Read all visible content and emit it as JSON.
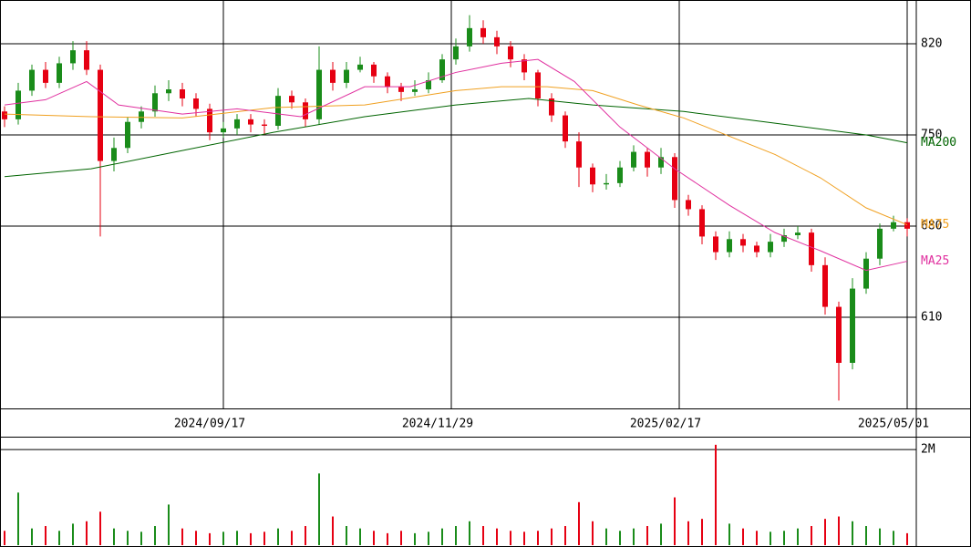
{
  "chart_data": {
    "type": "candlestick",
    "x": [
      0,
      3,
      6,
      9,
      12,
      15,
      18,
      21,
      24,
      27,
      30,
      33,
      36,
      39,
      42,
      45,
      48,
      51,
      54,
      57,
      60,
      63,
      66,
      69,
      72,
      75,
      78,
      81,
      84,
      87,
      90,
      93,
      96,
      99,
      102,
      105,
      108,
      111,
      114,
      117,
      120,
      123,
      126,
      129,
      132,
      135,
      138,
      141,
      144,
      147,
      150,
      153,
      156,
      159,
      162,
      165,
      168,
      171,
      174,
      177,
      180,
      183,
      186,
      189,
      192,
      195,
      198
    ],
    "candles": [
      [
        768,
        772,
        756,
        762
      ],
      [
        762,
        790,
        758,
        784
      ],
      [
        784,
        804,
        780,
        800
      ],
      [
        800,
        806,
        786,
        790
      ],
      [
        790,
        810,
        786,
        805
      ],
      [
        805,
        822,
        800,
        815
      ],
      [
        815,
        822,
        796,
        800
      ],
      [
        800,
        804,
        672,
        730
      ],
      [
        730,
        748,
        722,
        740
      ],
      [
        740,
        764,
        736,
        760
      ],
      [
        760,
        772,
        755,
        768
      ],
      [
        768,
        788,
        764,
        782
      ],
      [
        782,
        792,
        776,
        785
      ],
      [
        785,
        790,
        772,
        778
      ],
      [
        778,
        782,
        764,
        770
      ],
      [
        770,
        774,
        746,
        752
      ],
      [
        752,
        760,
        748,
        755
      ],
      [
        755,
        766,
        750,
        762
      ],
      [
        762,
        766,
        752,
        758
      ],
      [
        758,
        762,
        750,
        757
      ],
      [
        757,
        786,
        754,
        780
      ],
      [
        780,
        784,
        770,
        775
      ],
      [
        775,
        778,
        756,
        762
      ],
      [
        762,
        818,
        758,
        800
      ],
      [
        800,
        806,
        784,
        790
      ],
      [
        790,
        806,
        786,
        800
      ],
      [
        800,
        810,
        798,
        804
      ],
      [
        804,
        806,
        790,
        795
      ],
      [
        795,
        798,
        782,
        787
      ],
      [
        787,
        790,
        776,
        783
      ],
      [
        783,
        792,
        780,
        785
      ],
      [
        785,
        798,
        782,
        792
      ],
      [
        792,
        812,
        790,
        808
      ],
      [
        808,
        824,
        804,
        818
      ],
      [
        818,
        842,
        814,
        832
      ],
      [
        832,
        838,
        820,
        825
      ],
      [
        825,
        830,
        812,
        818
      ],
      [
        818,
        822,
        802,
        808
      ],
      [
        808,
        812,
        792,
        798
      ],
      [
        798,
        800,
        772,
        778
      ],
      [
        778,
        782,
        760,
        765
      ],
      [
        765,
        768,
        740,
        745
      ],
      [
        745,
        752,
        710,
        725
      ],
      [
        725,
        728,
        706,
        712
      ],
      [
        712,
        720,
        708,
        713
      ],
      [
        713,
        730,
        710,
        725
      ],
      [
        725,
        742,
        722,
        737
      ],
      [
        737,
        740,
        718,
        725
      ],
      [
        725,
        740,
        720,
        733
      ],
      [
        733,
        736,
        694,
        700
      ],
      [
        700,
        704,
        688,
        693
      ],
      [
        693,
        696,
        666,
        672
      ],
      [
        672,
        676,
        654,
        660
      ],
      [
        660,
        676,
        656,
        670
      ],
      [
        670,
        674,
        660,
        665
      ],
      [
        665,
        668,
        656,
        660
      ],
      [
        660,
        674,
        656,
        668
      ],
      [
        668,
        678,
        664,
        673
      ],
      [
        673,
        680,
        670,
        675
      ],
      [
        675,
        678,
        645,
        650
      ],
      [
        650,
        656,
        612,
        618
      ],
      [
        618,
        622,
        546,
        575
      ],
      [
        575,
        640,
        570,
        632
      ],
      [
        632,
        660,
        628,
        655
      ],
      [
        655,
        682,
        650,
        678
      ],
      [
        678,
        688,
        676,
        683
      ],
      [
        683,
        686,
        672,
        678
      ]
    ],
    "up_color": "#1a8c1a",
    "down_color": "#e60012",
    "xlim": [
      -1,
      200
    ],
    "xticks": [
      {
        "value": 48,
        "label": "2024/09/17"
      },
      {
        "value": 98,
        "label": "2024/11/29"
      },
      {
        "value": 148,
        "label": "2025/02/17"
      },
      {
        "value": 198,
        "label": "2025/05/01"
      }
    ],
    "ylim": [
      540,
      853.6
    ],
    "yticks": [
      610,
      680,
      750,
      820
    ],
    "grid": true,
    "moving_averages": [
      {
        "name": "MA200",
        "color": "#006400",
        "x": [
          0,
          19,
          39,
          59,
          79,
          99,
          115,
          129,
          149,
          169,
          189,
          198
        ],
        "values": [
          718,
          724,
          738,
          752,
          764,
          773,
          778,
          773,
          768,
          759,
          750,
          744
        ]
      },
      {
        "name": "MA75",
        "color": "#f0a020",
        "x": [
          0,
          19,
          39,
          59,
          79,
          99,
          109,
          119,
          129,
          139,
          149,
          159,
          169,
          179,
          189,
          198
        ],
        "values": [
          766,
          764,
          763,
          771,
          773,
          784,
          787,
          787,
          784,
          773,
          763,
          749,
          735,
          717,
          694,
          681
        ]
      },
      {
        "name": "MA25",
        "color": "#e0309f",
        "x": [
          0,
          9,
          18,
          25,
          39,
          51,
          65,
          79,
          89,
          99,
          109,
          117,
          125,
          135,
          147,
          159,
          169,
          179,
          189,
          198
        ],
        "values": [
          773,
          777,
          791,
          773,
          766,
          770,
          764,
          787,
          787,
          798,
          805,
          808,
          791,
          756,
          724,
          696,
          675,
          661,
          646,
          653
        ]
      }
    ],
    "volume": {
      "values": [
        300000,
        1100000,
        350000,
        400000,
        300000,
        450000,
        500000,
        700000,
        350000,
        300000,
        280000,
        400000,
        850000,
        350000,
        300000,
        250000,
        280000,
        300000,
        250000,
        280000,
        350000,
        300000,
        400000,
        1500000,
        600000,
        400000,
        350000,
        300000,
        250000,
        300000,
        250000,
        280000,
        350000,
        400000,
        500000,
        400000,
        350000,
        300000,
        280000,
        300000,
        350000,
        400000,
        900000,
        500000,
        350000,
        300000,
        350000,
        400000,
        450000,
        1000000,
        500000,
        550000,
        2100000,
        450000,
        350000,
        300000,
        280000,
        300000,
        350000,
        400000,
        550000,
        600000,
        500000,
        400000,
        350000,
        300000,
        250000
      ],
      "ylim": [
        0,
        2250000
      ],
      "yticks": [
        {
          "value": 2000000,
          "label": "2M"
        }
      ]
    }
  }
}
